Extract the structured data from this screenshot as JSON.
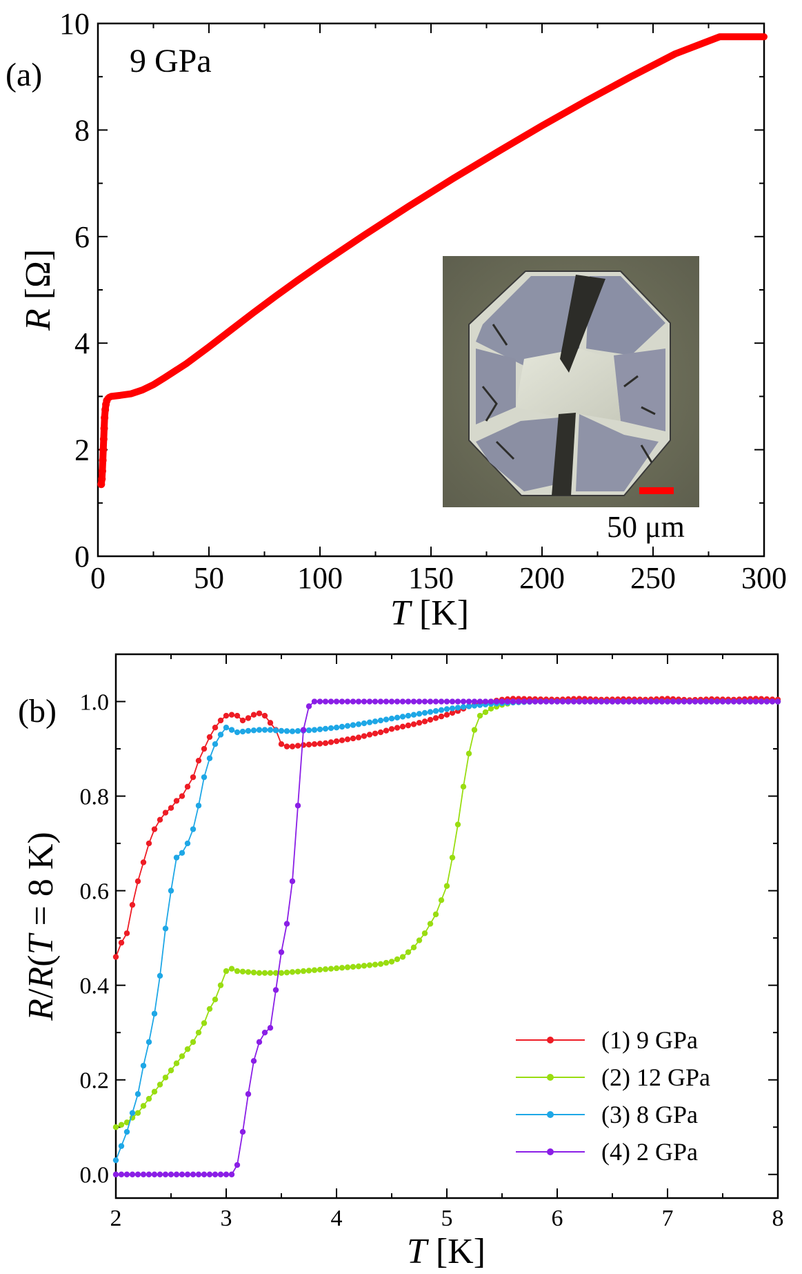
{
  "chart_data": [
    {
      "type": "line",
      "panel_label": "(a)",
      "annotation": "9 GPa",
      "xlabel_italic": "T",
      "xlabel_unit": " [K]",
      "ylabel_italic": "R",
      "ylabel_unit": " [Ω]",
      "xlim": [
        0,
        300
      ],
      "ylim": [
        0,
        10
      ],
      "xticks": [
        0,
        50,
        100,
        150,
        200,
        250,
        300
      ],
      "yticks": [
        0,
        2,
        4,
        6,
        8,
        10
      ],
      "grid": false,
      "inset": {
        "description_hidden": "micrograph of sample with electrical contacts",
        "scale_bar_label": "50 μm",
        "scale_bar_color": "#ff0000"
      },
      "series": [
        {
          "name": "9 GPa",
          "color": "#ff0000",
          "x": [
            1.5,
            1.8,
            2.0,
            2.2,
            2.4,
            2.6,
            2.8,
            3.0,
            3.3,
            3.6,
            4.0,
            4.5,
            5.0,
            6,
            8,
            10,
            15,
            20,
            25,
            30,
            40,
            50,
            60,
            70,
            80,
            90,
            100,
            120,
            140,
            160,
            180,
            200,
            220,
            240,
            260,
            280,
            300
          ],
          "y": [
            1.35,
            1.45,
            1.6,
            1.8,
            2.0,
            2.2,
            2.4,
            2.6,
            2.75,
            2.85,
            2.92,
            2.96,
            2.98,
            3.0,
            3.01,
            3.02,
            3.05,
            3.12,
            3.22,
            3.35,
            3.62,
            3.93,
            4.25,
            4.57,
            4.88,
            5.18,
            5.47,
            6.03,
            6.57,
            7.09,
            7.59,
            8.08,
            8.55,
            9.0,
            9.43,
            9.82,
            10.19
          ]
        }
      ]
    },
    {
      "type": "line",
      "panel_label": "(b)",
      "xlabel_italic": "T",
      "xlabel_unit": " [K]",
      "ylabel": "R/R(T = 8 K)",
      "xlim": [
        2,
        8
      ],
      "ylim": [
        -0.05,
        1.1
      ],
      "xticks": [
        2,
        3,
        4,
        5,
        6,
        7,
        8
      ],
      "yticks": [
        "0.0",
        "0.2",
        "0.4",
        "0.6",
        "0.8",
        "1.0"
      ],
      "grid": false,
      "legend_position": "bottom-right",
      "series": [
        {
          "name": "(1) 9 GPa",
          "color": "#ee1c25",
          "x": [
            2.0,
            2.05,
            2.1,
            2.15,
            2.2,
            2.25,
            2.3,
            2.35,
            2.4,
            2.45,
            2.5,
            2.55,
            2.6,
            2.65,
            2.7,
            2.75,
            2.8,
            2.85,
            2.9,
            2.95,
            3.0,
            3.05,
            3.1,
            3.15,
            3.2,
            3.25,
            3.3,
            3.35,
            3.4,
            3.45,
            3.5,
            3.55,
            3.6,
            3.7,
            3.8,
            3.9,
            4.0,
            4.1,
            4.2,
            4.3,
            4.4,
            4.5,
            4.6,
            4.7,
            4.8,
            4.9,
            5.0,
            5.1,
            5.2,
            5.3,
            5.4,
            5.5,
            5.6,
            5.8,
            6.0,
            6.2,
            6.4,
            6.6,
            6.8,
            7.0,
            7.2,
            7.4,
            7.6,
            7.8,
            8.0
          ],
          "y": [
            0.46,
            0.49,
            0.51,
            0.57,
            0.62,
            0.66,
            0.7,
            0.73,
            0.75,
            0.765,
            0.775,
            0.79,
            0.8,
            0.82,
            0.84,
            0.875,
            0.9,
            0.925,
            0.945,
            0.96,
            0.97,
            0.972,
            0.97,
            0.96,
            0.965,
            0.972,
            0.975,
            0.97,
            0.955,
            0.94,
            0.91,
            0.905,
            0.905,
            0.908,
            0.91,
            0.912,
            0.916,
            0.92,
            0.924,
            0.93,
            0.935,
            0.942,
            0.947,
            0.952,
            0.958,
            0.965,
            0.972,
            0.98,
            0.99,
            0.997,
            1.0,
            1.004,
            1.006,
            1.005,
            1.004,
            1.006,
            1.004,
            1.005,
            1.004,
            1.006,
            1.003,
            1.005,
            1.004,
            1.006,
            1.004
          ]
        },
        {
          "name": "(2) 12 GPa",
          "color": "#99dd11",
          "x": [
            2.0,
            2.1,
            2.2,
            2.3,
            2.4,
            2.5,
            2.6,
            2.7,
            2.8,
            2.85,
            2.9,
            2.95,
            3.0,
            3.05,
            3.1,
            3.2,
            3.3,
            3.4,
            3.5,
            3.6,
            3.8,
            4.0,
            4.2,
            4.4,
            4.5,
            4.6,
            4.7,
            4.8,
            4.9,
            5.0,
            5.05,
            5.1,
            5.15,
            5.2,
            5.25,
            5.3,
            5.4,
            5.5,
            5.6,
            5.8,
            6.0,
            6.5,
            7.0,
            7.5,
            8.0
          ],
          "y": [
            0.1,
            0.11,
            0.13,
            0.16,
            0.19,
            0.22,
            0.25,
            0.28,
            0.32,
            0.35,
            0.37,
            0.4,
            0.43,
            0.435,
            0.43,
            0.428,
            0.426,
            0.426,
            0.426,
            0.428,
            0.432,
            0.436,
            0.44,
            0.445,
            0.45,
            0.46,
            0.48,
            0.51,
            0.55,
            0.61,
            0.67,
            0.74,
            0.82,
            0.89,
            0.94,
            0.97,
            0.985,
            0.993,
            0.998,
            1.0,
            1.0,
            1.0,
            1.0,
            1.0,
            1.0
          ]
        },
        {
          "name": "(3) 8 GPa",
          "color": "#1ea7e6",
          "x": [
            2.0,
            2.05,
            2.1,
            2.15,
            2.2,
            2.25,
            2.3,
            2.35,
            2.4,
            2.45,
            2.5,
            2.55,
            2.6,
            2.65,
            2.7,
            2.75,
            2.8,
            2.85,
            2.9,
            2.95,
            3.0,
            3.05,
            3.1,
            3.2,
            3.3,
            3.4,
            3.5,
            3.6,
            3.8,
            4.0,
            4.2,
            4.4,
            4.6,
            4.8,
            5.0,
            5.2,
            5.4,
            5.6,
            5.8,
            6.0,
            6.5,
            7.0,
            7.5,
            8.0
          ],
          "y": [
            0.03,
            0.06,
            0.09,
            0.13,
            0.17,
            0.23,
            0.28,
            0.34,
            0.42,
            0.52,
            0.6,
            0.67,
            0.68,
            0.7,
            0.73,
            0.78,
            0.84,
            0.88,
            0.91,
            0.93,
            0.945,
            0.94,
            0.935,
            0.938,
            0.94,
            0.94,
            0.938,
            0.937,
            0.94,
            0.945,
            0.952,
            0.96,
            0.968,
            0.976,
            0.984,
            0.99,
            0.995,
            0.998,
            1.0,
            1.0,
            1.0,
            1.0,
            1.0,
            1.0
          ]
        },
        {
          "name": "(4) 2 GPa",
          "color": "#8a1ee6",
          "x": [
            2.0,
            2.2,
            2.4,
            2.6,
            2.8,
            3.0,
            3.05,
            3.1,
            3.15,
            3.2,
            3.25,
            3.3,
            3.35,
            3.4,
            3.45,
            3.5,
            3.55,
            3.6,
            3.65,
            3.7,
            3.75,
            3.8,
            3.9,
            4.0,
            4.5,
            5.0,
            5.5,
            6.0,
            6.5,
            7.0,
            7.5,
            8.0
          ],
          "y": [
            0.0,
            0.0,
            0.0,
            0.0,
            0.0,
            0.0,
            0.0,
            0.02,
            0.09,
            0.17,
            0.24,
            0.28,
            0.3,
            0.31,
            0.39,
            0.47,
            0.53,
            0.62,
            0.78,
            0.94,
            0.99,
            1.0,
            1.0,
            1.0,
            1.0,
            1.0,
            1.0,
            1.0,
            1.0,
            1.0,
            1.0,
            1.0
          ]
        }
      ]
    }
  ]
}
